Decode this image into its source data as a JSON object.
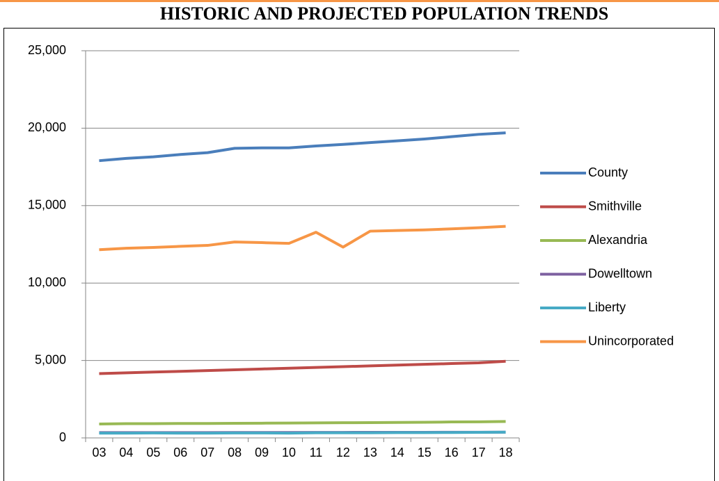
{
  "chart_data": {
    "type": "line",
    "title": "HISTORIC AND PROJECTED POPULATION TRENDS",
    "categories": [
      "03",
      "04",
      "05",
      "06",
      "07",
      "08",
      "09",
      "10",
      "11",
      "12",
      "13",
      "14",
      "15",
      "16",
      "17",
      "18"
    ],
    "series": [
      {
        "name": "County",
        "color": "#4a7ebb",
        "values": [
          17900,
          18050,
          18150,
          18300,
          18420,
          18700,
          18730,
          18730,
          18850,
          18950,
          19070,
          19180,
          19300,
          19450,
          19600,
          19700
        ]
      },
      {
        "name": "Smithville",
        "color": "#be4b48",
        "values": [
          4150,
          4200,
          4250,
          4300,
          4350,
          4400,
          4450,
          4500,
          4550,
          4600,
          4650,
          4700,
          4750,
          4800,
          4850,
          4950
        ]
      },
      {
        "name": "Alexandria",
        "color": "#98b954",
        "values": [
          900,
          920,
          920,
          930,
          930,
          940,
          950,
          960,
          970,
          980,
          990,
          1000,
          1010,
          1030,
          1040,
          1060
        ]
      },
      {
        "name": "Dowelltown",
        "color": "#7d60a0",
        "values": [
          340,
          340,
          345,
          345,
          345,
          350,
          350,
          350,
          355,
          355,
          360,
          360,
          360,
          365,
          365,
          370
        ]
      },
      {
        "name": "Liberty",
        "color": "#46aac5",
        "values": [
          310,
          310,
          320,
          310,
          310,
          320,
          320,
          310,
          330,
          330,
          330,
          340,
          340,
          350,
          360,
          370
        ]
      },
      {
        "name": "Unincorporated",
        "color": "#f79646",
        "values": [
          12150,
          12250,
          12300,
          12370,
          12430,
          12650,
          12610,
          12560,
          13280,
          12320,
          13350,
          13390,
          13430,
          13500,
          13570,
          13660
        ]
      }
    ],
    "ylim": [
      0,
      25000
    ],
    "yticks": [
      0,
      {
        "value": 5000,
        "label": "5,000"
      },
      {
        "value": 10000,
        "label": "10,000"
      },
      {
        "value": 15000,
        "label": "15,000"
      },
      {
        "value": 20000,
        "label": "20,000"
      },
      {
        "value": 25000,
        "label": "25,000"
      }
    ],
    "grid": true,
    "legend": "right"
  }
}
